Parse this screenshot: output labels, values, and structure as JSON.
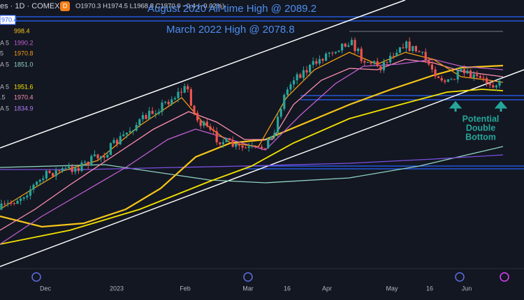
{
  "header": {
    "symbol": "es · 1D · COMEX",
    "badge": "D",
    "ohlc": "O1970.3 H1974.5 L1968.8 C1970.0 −0.4 (−0.02%)"
  },
  "price_tag": "970.4",
  "legend": [
    {
      "label": "",
      "value": "998.4",
      "color": "#f5c518"
    },
    {
      "label": "A 5",
      "value": "1990.2",
      "color": "#c15fd1"
    },
    {
      "label": "5",
      "value": "1970.8",
      "color": "#f39c12"
    },
    {
      "label": "A 5",
      "value": "1851.0",
      "color": "#8fd3c0"
    },
    {
      "label": "A 5",
      "value": "1951.6",
      "color": "#f5e300"
    },
    {
      "label": ".5",
      "value": "1970.4",
      "color": "#ff8fb1"
    },
    {
      "label": "A 5",
      "value": "1834.9",
      "color": "#b57cf5"
    }
  ],
  "annotations": [
    "August 2020 All-time High @ 2089.2",
    "March 2022 High @ 2078.8"
  ],
  "callout": [
    "Potential",
    "Double",
    "Bottom"
  ],
  "x_axis": [
    "Dec",
    "2023",
    "Feb",
    "Mar",
    "16",
    "Apr",
    "May",
    "16",
    "Jun"
  ]
}
